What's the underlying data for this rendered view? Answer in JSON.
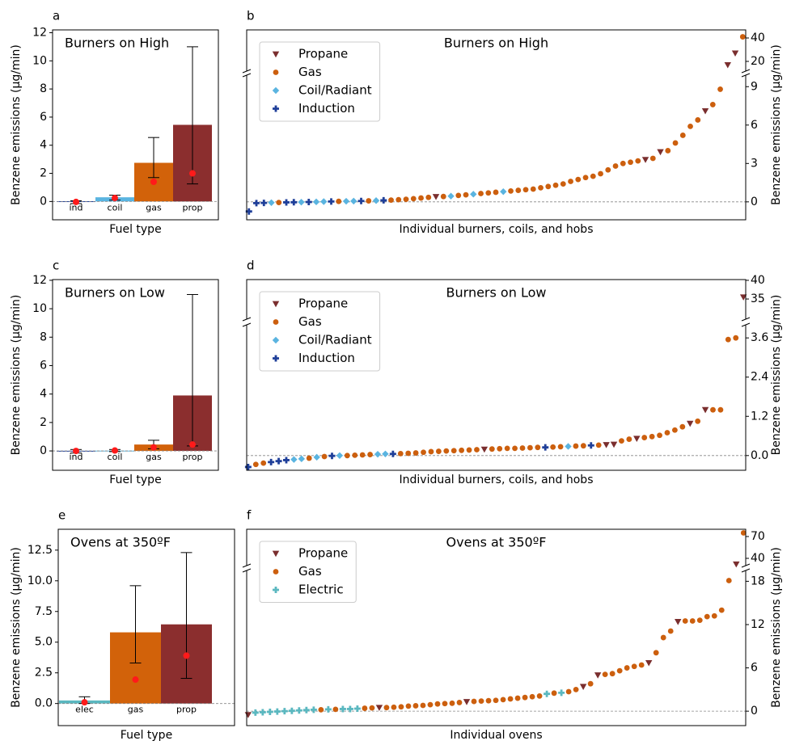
{
  "chart_data": [
    {
      "type": "bar",
      "label": "a",
      "title": "Burners on High",
      "xlabel": "Fuel type",
      "ylabel": "Benzene emissions (µg/min)",
      "categories": [
        "ind",
        "coil",
        "gas",
        "prop"
      ],
      "values": [
        0.02,
        0.3,
        2.75,
        5.45
      ],
      "colors": [
        "#1f3f99",
        "#5ab4e0",
        "#d2620a",
        "#8b2e2e"
      ],
      "err_low": [
        -0.15,
        0.1,
        1.7,
        1.25
      ],
      "err_high": [
        0.05,
        0.45,
        4.55,
        11
      ],
      "medians": [
        -0.03,
        0.25,
        1.4,
        2.0
      ],
      "median_color": "#ff1a1a",
      "ylim": [
        -1.3,
        12.2
      ],
      "yticks": [
        0,
        2,
        4,
        6,
        8,
        10,
        12
      ]
    },
    {
      "type": "scatter",
      "label": "b",
      "title": "Burners on High",
      "xlabel": "Individual burners, coils, and hobs",
      "ylabel": "Benzene emissions (µg/min)",
      "legend": "upper left",
      "xlim": [
        -0.3,
        66.4
      ],
      "y2lim": [
        -1.4,
        9.9
      ],
      "y2ticks": [
        0,
        3,
        6,
        9
      ],
      "y2lim_break": [
        11.7,
        46.9
      ],
      "y2ticks_break": [
        20,
        40
      ],
      "series": [
        {
          "name": "Propane",
          "color": "#7a2e2e",
          "marker": "v",
          "x": [
            25,
            53,
            55,
            61,
            64,
            65
          ],
          "values": [
            0.4,
            3.3,
            3.9,
            7.1,
            17,
            27
          ]
        },
        {
          "name": "Gas",
          "color": "#cc5f0e",
          "marker": "o",
          "x": [
            4,
            12,
            16,
            19,
            20,
            21,
            22,
            23,
            24,
            26,
            28,
            29,
            31,
            32,
            33,
            35,
            36,
            37,
            38,
            39,
            40,
            41,
            42,
            43,
            44,
            45,
            46,
            47,
            48,
            49,
            50,
            51,
            52,
            54,
            56,
            57,
            58,
            59,
            60,
            62,
            63,
            66
          ],
          "values": [
            -0.05,
            0.04,
            0.08,
            0.14,
            0.17,
            0.2,
            0.25,
            0.3,
            0.35,
            0.42,
            0.5,
            0.55,
            0.65,
            0.7,
            0.75,
            0.85,
            0.9,
            0.95,
            1.0,
            1.1,
            1.2,
            1.3,
            1.4,
            1.6,
            1.75,
            1.9,
            2.0,
            2.2,
            2.5,
            2.8,
            3.0,
            3.1,
            3.2,
            3.4,
            4.0,
            4.6,
            5.2,
            5.9,
            6.4,
            7.6,
            8.8,
            41
          ]
        },
        {
          "name": "Coil/Radiant",
          "color": "#5ab4e0",
          "marker": "D",
          "x": [
            3,
            7,
            9,
            10,
            13,
            14,
            17,
            27,
            30,
            34
          ],
          "values": [
            -0.06,
            -0.02,
            0.0,
            0.02,
            0.05,
            0.06,
            0.1,
            0.45,
            0.6,
            0.8
          ]
        },
        {
          "name": "Induction",
          "color": "#1f3f99",
          "marker": "P",
          "x": [
            0,
            1,
            2,
            5,
            6,
            8,
            11,
            15,
            18
          ],
          "values": [
            -0.75,
            -0.1,
            -0.08,
            -0.04,
            -0.03,
            -0.01,
            0.03,
            0.07,
            0.12
          ]
        }
      ]
    },
    {
      "type": "bar",
      "label": "c",
      "title": "Burners on Low",
      "xlabel": "Fuel type",
      "ylabel": "Benzene emissions (µg/min)",
      "categories": [
        "ind",
        "coil",
        "gas",
        "prop"
      ],
      "values": [
        0.01,
        0.02,
        0.45,
        3.9
      ],
      "colors": [
        "#1f3f99",
        "#5ab4e0",
        "#d2620a",
        "#8b2e2e"
      ],
      "err_low": [
        -0.15,
        -0.05,
        0.15,
        0.35
      ],
      "err_high": [
        0.1,
        0.1,
        0.75,
        11
      ],
      "medians": [
        0,
        0.03,
        0.25,
        0.45
      ],
      "median_color": "#ff1a1a",
      "ylim": [
        -1.36,
        12.05
      ],
      "yticks": [
        0,
        2,
        4,
        6,
        8,
        10,
        12
      ]
    },
    {
      "type": "scatter",
      "label": "d",
      "title": "Burners on Low",
      "xlabel": "Individual burners, coils, and hobs",
      "ylabel": "Benzene emissions (µg/min)",
      "legend": "upper left",
      "xlim": [
        -0.2,
        65.3
      ],
      "y2lim": [
        -0.45,
        4.0
      ],
      "y2ticks": [
        {
          "value": 0,
          "label": "0.0"
        },
        1.2,
        2.4,
        3.6
      ],
      "y2lim_break": [
        29.6,
        40.2
      ],
      "y2ticks_break": [
        35,
        40
      ],
      "series": [
        {
          "name": "Propane",
          "color": "#7a2e2e",
          "marker": "v",
          "x": [
            31,
            47,
            48,
            51,
            58,
            60,
            65
          ],
          "values": [
            0.19,
            0.33,
            0.34,
            0.52,
            0.98,
            1.4,
            35.5
          ]
        },
        {
          "name": "Gas",
          "color": "#cc5f0e",
          "marker": "o",
          "x": [
            1,
            2,
            8,
            10,
            13,
            14,
            15,
            16,
            20,
            21,
            22,
            23,
            24,
            25,
            26,
            27,
            28,
            29,
            30,
            32,
            33,
            34,
            35,
            36,
            37,
            38,
            40,
            41,
            43,
            44,
            46,
            49,
            50,
            52,
            53,
            54,
            55,
            56,
            57,
            59,
            61,
            62,
            63,
            64
          ],
          "values": [
            -0.27,
            -0.23,
            -0.08,
            -0.03,
            0.0,
            0.01,
            0.02,
            0.03,
            0.06,
            0.07,
            0.08,
            0.1,
            0.12,
            0.13,
            0.14,
            0.15,
            0.16,
            0.17,
            0.18,
            0.2,
            0.21,
            0.22,
            0.22,
            0.23,
            0.24,
            0.25,
            0.26,
            0.27,
            0.29,
            0.3,
            0.32,
            0.45,
            0.5,
            0.55,
            0.58,
            0.62,
            0.7,
            0.78,
            0.88,
            1.05,
            1.4,
            1.4,
            3.55,
            3.6
          ]
        },
        {
          "name": "Coil/Radiant",
          "color": "#5ab4e0",
          "marker": "D",
          "x": [
            6,
            7,
            9,
            12,
            17,
            18,
            42
          ],
          "values": [
            -0.12,
            -0.1,
            -0.05,
            0.0,
            0.04,
            0.05,
            0.28
          ]
        },
        {
          "name": "Induction",
          "color": "#1f3f99",
          "marker": "P",
          "x": [
            0,
            3,
            4,
            5,
            11,
            19,
            39,
            45
          ],
          "values": [
            -0.35,
            -0.2,
            -0.17,
            -0.14,
            -0.01,
            0.05,
            0.25,
            0.31
          ]
        }
      ]
    },
    {
      "type": "bar",
      "label": "e",
      "title": "Ovens at 350ºF",
      "xlabel": "Fuel type",
      "ylabel": "Benzene emissions (µg/min)",
      "categories": [
        "elec",
        "gas",
        "prop"
      ],
      "values": [
        0.25,
        5.8,
        6.45
      ],
      "colors": [
        "#5bb8c0",
        "#d2620a",
        "#8b2e2e"
      ],
      "err_low": [
        0,
        3.3,
        2.05
      ],
      "err_high": [
        0.55,
        9.6,
        12.3
      ],
      "medians": [
        0.1,
        1.95,
        3.9
      ],
      "median_color": "#ff1a1a",
      "ylim": [
        -1.8,
        14.2
      ],
      "yticks": [
        {
          "value": 0,
          "label": "0.0"
        },
        2.5,
        {
          "value": 5,
          "label": "5.0"
        },
        7.5,
        {
          "value": 10,
          "label": "10.0"
        },
        12.5
      ]
    },
    {
      "type": "scatter",
      "label": "f",
      "title": "Ovens at 350ºF",
      "xlabel": "Individual ovens",
      "ylabel": "Benzene emissions (µg/min)",
      "legend": "upper left",
      "xlim": [
        -0.2,
        68.3
      ],
      "y2lim": [
        -2.0,
        19.5
      ],
      "y2ticks": [
        0,
        6,
        12,
        18
      ],
      "y2lim_break": [
        30,
        80
      ],
      "y2ticks_break": [
        40,
        70
      ],
      "series": [
        {
          "name": "Propane",
          "color": "#7a2e2e",
          "marker": "v",
          "x": [
            0,
            18,
            30,
            46,
            48,
            55,
            59,
            67
          ],
          "values": [
            -0.5,
            0.5,
            1.3,
            3.4,
            5.0,
            6.7,
            12.4,
            32
          ]
        },
        {
          "name": "Gas",
          "color": "#cc5f0e",
          "marker": "o",
          "x": [
            10,
            12,
            16,
            17,
            19,
            20,
            21,
            22,
            23,
            24,
            25,
            26,
            27,
            28,
            29,
            31,
            32,
            33,
            34,
            35,
            36,
            37,
            38,
            39,
            40,
            42,
            44,
            45,
            47,
            49,
            50,
            51,
            52,
            53,
            54,
            56,
            57,
            58,
            60,
            61,
            62,
            63,
            64,
            65,
            66,
            68
          ],
          "values": [
            0.2,
            0.25,
            0.4,
            0.45,
            0.5,
            0.55,
            0.6,
            0.7,
            0.75,
            0.8,
            0.9,
            1.0,
            1.05,
            1.1,
            1.2,
            1.35,
            1.4,
            1.45,
            1.5,
            1.6,
            1.7,
            1.8,
            1.9,
            2.0,
            2.1,
            2.5,
            2.7,
            3.0,
            3.8,
            5.1,
            5.2,
            5.6,
            6.0,
            6.2,
            6.4,
            8.1,
            10.2,
            11.1,
            12.5,
            12.5,
            12.6,
            13.1,
            13.2,
            14.0,
            18.1,
            75
          ]
        },
        {
          "name": "Electric",
          "color": "#5bb8c0",
          "marker": "P",
          "x": [
            1,
            2,
            3,
            4,
            5,
            6,
            7,
            8,
            9,
            11,
            13,
            14,
            15,
            41,
            43
          ],
          "values": [
            -0.2,
            -0.15,
            -0.1,
            -0.05,
            0.0,
            0.05,
            0.1,
            0.15,
            0.2,
            0.25,
            0.3,
            0.3,
            0.35,
            2.4,
            2.55
          ]
        }
      ]
    }
  ]
}
